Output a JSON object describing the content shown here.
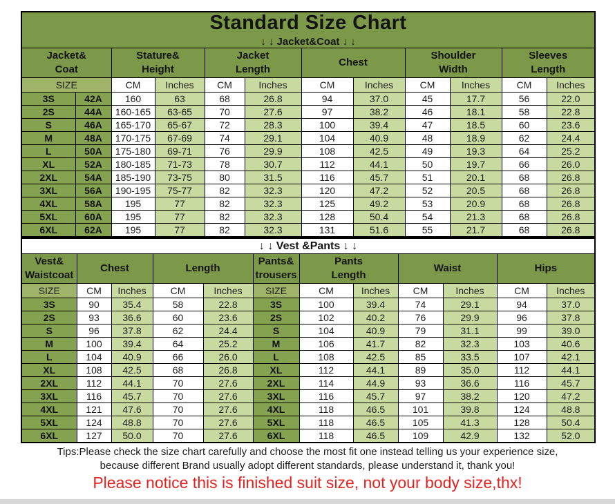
{
  "title": "Standard Size Chart",
  "sections": {
    "jacket_label": "↓ ↓  Jacket&Coat ↓ ↓",
    "vest_label": "↓ ↓  Vest &Pants ↓ ↓"
  },
  "colors": {
    "header_green": "#7b9949",
    "size_cell_green": "#84a250",
    "subheader_green": "#9fb469",
    "inches_green": "#c8daa0",
    "table_border": "#000000",
    "notice_red": "#e42320",
    "text_dark": "#1c1c1c",
    "bottom_strip_gray": "#d7d7d7"
  },
  "jacket_table": {
    "group_headers": [
      {
        "name": "jacket-coat-header",
        "lines": [
          "Jacket&",
          "Coat"
        ],
        "span": 2
      },
      {
        "name": "stature-height-header",
        "lines": [
          "Stature&",
          "Height"
        ],
        "span": 2
      },
      {
        "name": "jacket-length-header",
        "lines": [
          "Jacket",
          "Length"
        ],
        "span": 2
      },
      {
        "name": "chest-header",
        "lines": [
          "Chest"
        ],
        "span": 2
      },
      {
        "name": "shoulder-width-header",
        "lines": [
          "Shoulder",
          "Width"
        ],
        "span": 2
      },
      {
        "name": "sleeves-length-header",
        "lines": [
          "Sleeves",
          "Length"
        ],
        "span": 2
      }
    ],
    "unit_headers": [
      {
        "text": "SIZE",
        "span": 2
      },
      {
        "text": "CM"
      },
      {
        "text": "Inches"
      },
      {
        "text": "CM"
      },
      {
        "text": "Inches"
      },
      {
        "text": "CM"
      },
      {
        "text": "Inches"
      },
      {
        "text": "CM"
      },
      {
        "text": "Inches"
      },
      {
        "text": "CM"
      },
      {
        "text": "Inches"
      }
    ],
    "col_types": [
      "size",
      "size",
      "cm",
      "in",
      "cm",
      "in",
      "cm",
      "in",
      "cm",
      "in",
      "cm",
      "in"
    ],
    "rows": [
      [
        "3S",
        "42A",
        "160",
        "63",
        "68",
        "26.8",
        "94",
        "37.0",
        "45",
        "17.7",
        "56",
        "22.0"
      ],
      [
        "2S",
        "44A",
        "160-165",
        "63-65",
        "70",
        "27.6",
        "97",
        "38.2",
        "46",
        "18.1",
        "58",
        "22.8"
      ],
      [
        "S",
        "46A",
        "165-170",
        "65-67",
        "72",
        "28.3",
        "100",
        "39.4",
        "47",
        "18.5",
        "60",
        "23.6"
      ],
      [
        "M",
        "48A",
        "170-175",
        "67-69",
        "74",
        "29.1",
        "104",
        "40.9",
        "48",
        "18.9",
        "62",
        "24.4"
      ],
      [
        "L",
        "50A",
        "175-180",
        "69-71",
        "76",
        "29.9",
        "108",
        "42.5",
        "49",
        "19.3",
        "64",
        "25.2"
      ],
      [
        "XL",
        "52A",
        "180-185",
        "71-73",
        "78",
        "30.7",
        "112",
        "44.1",
        "50",
        "19.7",
        "66",
        "26.0"
      ],
      [
        "2XL",
        "54A",
        "185-190",
        "73-75",
        "80",
        "31.5",
        "116",
        "45.7",
        "51",
        "20.1",
        "68",
        "26.8"
      ],
      [
        "3XL",
        "56A",
        "190-195",
        "75-77",
        "82",
        "32.3",
        "120",
        "47.2",
        "52",
        "20.5",
        "68",
        "26.8"
      ],
      [
        "4XL",
        "58A",
        "195",
        "77",
        "82",
        "32.3",
        "125",
        "49.2",
        "53",
        "20.9",
        "68",
        "26.8"
      ],
      [
        "5XL",
        "60A",
        "195",
        "77",
        "82",
        "32.3",
        "128",
        "50.4",
        "54",
        "21.3",
        "68",
        "26.8"
      ],
      [
        "6XL",
        "62A",
        "195",
        "77",
        "82",
        "32.3",
        "131",
        "51.6",
        "55",
        "21.7",
        "68",
        "26.8"
      ]
    ]
  },
  "vest_table": {
    "group_headers": [
      {
        "name": "vest-waistcoat-header",
        "lines": [
          "Vest&",
          "Waistcoat"
        ],
        "span": 1
      },
      {
        "name": "chest-header",
        "lines": [
          "Chest"
        ],
        "span": 2
      },
      {
        "name": "length-header",
        "lines": [
          "Length"
        ],
        "span": 2
      },
      {
        "name": "pants-trousers-header",
        "lines": [
          "Pants&",
          "trousers"
        ],
        "span": 1
      },
      {
        "name": "pants-length-header",
        "lines": [
          "Pants",
          "Length"
        ],
        "span": 2
      },
      {
        "name": "waist-header",
        "lines": [
          "Waist"
        ],
        "span": 2
      },
      {
        "name": "hips-header",
        "lines": [
          "Hips"
        ],
        "span": 2
      }
    ],
    "unit_headers": [
      {
        "text": "SIZE"
      },
      {
        "text": "CM"
      },
      {
        "text": "Inches"
      },
      {
        "text": "CM"
      },
      {
        "text": "Inches"
      },
      {
        "text": "SIZE"
      },
      {
        "text": "CM"
      },
      {
        "text": "Inches"
      },
      {
        "text": "CM"
      },
      {
        "text": "Inches"
      },
      {
        "text": "CM"
      },
      {
        "text": "Inches"
      }
    ],
    "col_types": [
      "size",
      "cm",
      "in",
      "cm",
      "in",
      "size",
      "cm",
      "in",
      "cm",
      "in",
      "cm",
      "in"
    ],
    "rows": [
      [
        "3S",
        "90",
        "35.4",
        "58",
        "22.8",
        "3S",
        "100",
        "39.4",
        "74",
        "29.1",
        "94",
        "37.0"
      ],
      [
        "2S",
        "93",
        "36.6",
        "60",
        "23.6",
        "2S",
        "102",
        "40.2",
        "76",
        "29.9",
        "96",
        "37.8"
      ],
      [
        "S",
        "96",
        "37.8",
        "62",
        "24.4",
        "S",
        "104",
        "40.9",
        "79",
        "31.1",
        "99",
        "39.0"
      ],
      [
        "M",
        "100",
        "39.4",
        "64",
        "25.2",
        "M",
        "106",
        "41.7",
        "82",
        "32.3",
        "103",
        "40.6"
      ],
      [
        "L",
        "104",
        "40.9",
        "66",
        "26.0",
        "L",
        "108",
        "42.5",
        "85",
        "33.5",
        "107",
        "42.1"
      ],
      [
        "XL",
        "108",
        "42.5",
        "68",
        "26.8",
        "XL",
        "112",
        "44.1",
        "89",
        "35.0",
        "112",
        "44.1"
      ],
      [
        "2XL",
        "112",
        "44.1",
        "70",
        "27.6",
        "2XL",
        "114",
        "44.9",
        "93",
        "36.6",
        "116",
        "45.7"
      ],
      [
        "3XL",
        "116",
        "45.7",
        "70",
        "27.6",
        "3XL",
        "116",
        "45.7",
        "97",
        "38.2",
        "120",
        "47.2"
      ],
      [
        "4XL",
        "121",
        "47.6",
        "70",
        "27.6",
        "4XL",
        "118",
        "46.5",
        "101",
        "39.8",
        "124",
        "48.8"
      ],
      [
        "5XL",
        "124",
        "48.8",
        "70",
        "27.6",
        "5XL",
        "118",
        "46.5",
        "105",
        "41.3",
        "128",
        "50.4"
      ],
      [
        "6XL",
        "127",
        "50.0",
        "70",
        "27.6",
        "6XL",
        "118",
        "46.5",
        "109",
        "42.9",
        "132",
        "52.0"
      ]
    ]
  },
  "notes": {
    "tips_line1": "Tips:Please check the size chart carefully and choose the most fit one instead telling us your experience size,",
    "tips_line2": "because different Brand usually adopt different standards, please understand it, thank you!",
    "red_notice": "Please notice this is finished suit size, not your body size,thx!"
  }
}
